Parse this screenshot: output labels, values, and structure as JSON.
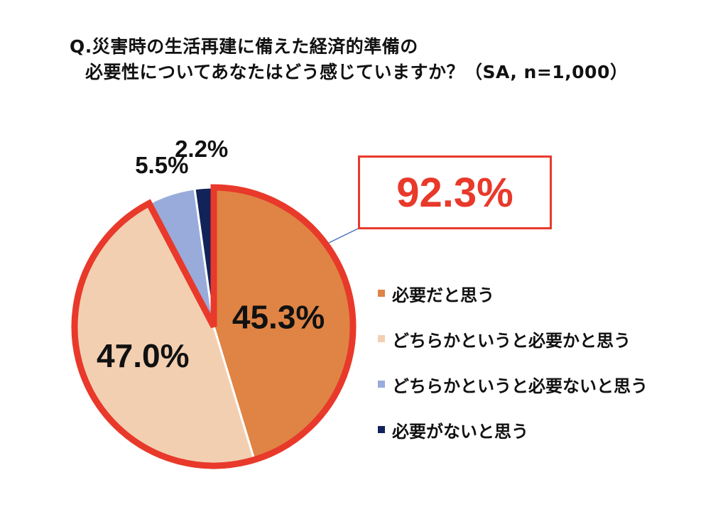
{
  "title": {
    "line1": "Q.災害時の生活再建に備えた経済的準備の",
    "line2": "必要性についてあなたはどう感じていますか？（SA, n=1,000）"
  },
  "highlight": {
    "text": "92.3%",
    "color": "#e8392b"
  },
  "chart_data": {
    "type": "pie",
    "start_angle_deg": 0,
    "direction": "clockwise",
    "labels": [
      "必要だと思う",
      "どちらかというと必要かと思う",
      "どちらかというと必要ないと思う",
      "必要がないと思う"
    ],
    "values": [
      45.3,
      47.0,
      5.5,
      2.2
    ],
    "value_labels": [
      "45.3%",
      "47.0%",
      "5.5%",
      "2.2%"
    ],
    "colors": [
      "#df8445",
      "#f3cfb1",
      "#98abdb",
      "#112358"
    ],
    "highlighted_slices": [
      0,
      1
    ],
    "highlight_total": "92.3%",
    "legend_position": "right"
  }
}
